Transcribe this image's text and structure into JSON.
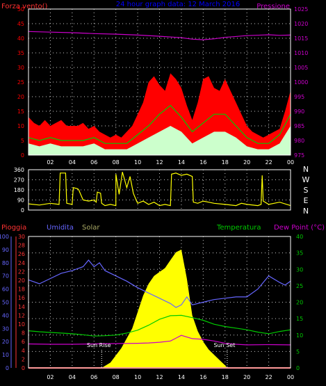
{
  "title": "24 hour graph data: 12 March 2016",
  "colors": {
    "background": "#000000",
    "axis": "#ffffff",
    "grid": "#cccccc",
    "wind_gust": "#ff0000",
    "wind_avg": "#00cc00",
    "wind_base": "#ccffcc",
    "pressure": "#cc00cc",
    "direction": "#ffff00",
    "rain": "#ff3333",
    "humidity": "#6666ff",
    "solar": "#ffff00",
    "temperature": "#00cc00",
    "dewpoint": "#cc00cc",
    "label_rain": "#ff3333",
    "label_humidity": "#6666ff",
    "label_solar": "#aaaa66",
    "label_temperature": "#00cc00",
    "label_dewpoint": "#cc00cc",
    "label_wind": "#ff3333",
    "label_pressure": "#cc00cc",
    "label_title": "#0000ff",
    "label_sun": "#ffffff"
  },
  "chart_data": [
    {
      "type": "line",
      "id": "wind-pressure",
      "title": "24 hour graph data: 12 March 2016",
      "x_tick_labels": [
        "02",
        "04",
        "06",
        "08",
        "10",
        "12",
        "14",
        "16",
        "18",
        "20",
        "22",
        "00"
      ],
      "xlim_hours": [
        0,
        24
      ],
      "left_axis": {
        "label": "Forza vento()",
        "ylim": [
          0,
          50
        ],
        "ticks": [
          0,
          5,
          10,
          15,
          20,
          25,
          30,
          35,
          40,
          45,
          50
        ]
      },
      "right_axis": {
        "label": "Pressione",
        "ylim": [
          975,
          1025
        ],
        "ticks": [
          975,
          980,
          985,
          990,
          995,
          1000,
          1005,
          1010,
          1015,
          1020,
          1025
        ]
      },
      "grid": true,
      "series": [
        {
          "name": "Gust",
          "axis": "left",
          "style": "filled-area",
          "x": [
            0,
            0.5,
            1,
            1.5,
            2,
            2.5,
            3,
            3.5,
            4,
            4.5,
            5,
            5.5,
            6,
            6.5,
            7,
            7.5,
            8,
            8.5,
            9,
            9.5,
            10,
            10.5,
            11,
            11.5,
            12,
            12.5,
            13,
            13.5,
            14,
            14.5,
            15,
            15.5,
            16,
            16.5,
            17,
            17.5,
            18,
            18.5,
            19,
            19.5,
            20,
            20.5,
            21,
            21.5,
            22,
            22.5,
            23,
            23.5,
            24
          ],
          "values": [
            13,
            11,
            10,
            12,
            10,
            11,
            12,
            10,
            10,
            10,
            11,
            9,
            10,
            8,
            7,
            6,
            7,
            6,
            8,
            10,
            14,
            18,
            25,
            27,
            24,
            22,
            28,
            26,
            23,
            17,
            12,
            18,
            26,
            27,
            23,
            22,
            26,
            22,
            18,
            14,
            10,
            8,
            7,
            6,
            7,
            8,
            9,
            15,
            22
          ]
        },
        {
          "name": "Average",
          "axis": "left",
          "style": "line",
          "x": [
            0,
            1,
            2,
            3,
            4,
            5,
            6,
            7,
            8,
            9,
            10,
            11,
            12,
            13,
            14,
            15,
            16,
            17,
            18,
            19,
            20,
            21,
            22,
            23,
            24
          ],
          "values": [
            6,
            5,
            6,
            5,
            5,
            5,
            6,
            4,
            4,
            4,
            7,
            10,
            14,
            17,
            13,
            8,
            11,
            14,
            14,
            10,
            6,
            4,
            4,
            7,
            14
          ]
        },
        {
          "name": "Base",
          "axis": "left",
          "style": "filled-area",
          "x": [
            0,
            1,
            2,
            3,
            4,
            5,
            6,
            7,
            8,
            9,
            10,
            11,
            12,
            13,
            14,
            15,
            16,
            17,
            18,
            19,
            20,
            21,
            22,
            23,
            24
          ],
          "values": [
            4,
            3,
            4,
            3,
            3,
            3,
            4,
            2,
            2,
            2,
            4,
            6,
            8,
            10,
            8,
            4,
            6,
            8,
            8,
            6,
            3,
            2,
            2,
            4,
            10
          ]
        },
        {
          "name": "Pressure",
          "axis": "right",
          "style": "line",
          "x": [
            0,
            2,
            4,
            6,
            8,
            10,
            12,
            14,
            15,
            16,
            17,
            18,
            20,
            22,
            23,
            24
          ],
          "values": [
            1017.3,
            1017.1,
            1016.9,
            1016.6,
            1016.4,
            1016.1,
            1015.7,
            1015.2,
            1014.7,
            1014.5,
            1014.8,
            1015.3,
            1015.9,
            1016.2,
            1016.0,
            1016.1
          ]
        }
      ]
    },
    {
      "type": "line",
      "id": "wind-direction",
      "x_tick_labels": [
        "02",
        "04",
        "06",
        "08",
        "10",
        "12",
        "14",
        "16",
        "18",
        "20",
        "22",
        "00"
      ],
      "xlim_hours": [
        0,
        24
      ],
      "left_axis": {
        "ylim": [
          0,
          360
        ],
        "ticks": [
          0,
          90,
          180,
          270,
          360
        ]
      },
      "right_axis_labels": [
        "N",
        "W",
        "S",
        "E",
        "N"
      ],
      "grid": true,
      "series": [
        {
          "name": "Direction",
          "style": "line",
          "x": [
            0,
            1,
            2,
            2.8,
            2.9,
            3.4,
            3.5,
            4,
            4.1,
            4.5,
            4.6,
            5,
            5.5,
            6,
            6.2,
            6.3,
            6.6,
            6.7,
            7,
            7.5,
            8,
            8,
            8.3,
            8.6,
            9,
            9.3,
            9.6,
            9.9,
            10,
            10.5,
            11,
            11.5,
            12,
            12.5,
            13,
            13.1,
            13.5,
            14,
            14.5,
            15,
            15.1,
            15.5,
            16,
            16.5,
            17,
            18,
            19,
            19.5,
            20,
            21,
            21.3,
            21.4,
            21.5,
            22,
            23,
            24
          ],
          "values": [
            55,
            45,
            60,
            50,
            330,
            330,
            60,
            50,
            200,
            190,
            180,
            90,
            80,
            90,
            70,
            160,
            150,
            60,
            40,
            50,
            40,
            320,
            140,
            340,
            200,
            300,
            150,
            80,
            60,
            80,
            50,
            70,
            40,
            50,
            40,
            320,
            330,
            310,
            320,
            300,
            70,
            60,
            80,
            70,
            60,
            50,
            40,
            60,
            50,
            40,
            50,
            310,
            80,
            50,
            70,
            40
          ]
        }
      ]
    },
    {
      "type": "line",
      "id": "rain-humidity-solar-temp",
      "x_tick_labels": [
        "02",
        "04",
        "06",
        "08",
        "10",
        "12",
        "14",
        "16",
        "18",
        "20",
        "22",
        "00"
      ],
      "xlim_hours": [
        0,
        24
      ],
      "axes": [
        {
          "label": "Pioggia",
          "ylim": [
            0,
            30
          ],
          "ticks": [
            0,
            2,
            4,
            6,
            8,
            10,
            12,
            14,
            16,
            18,
            20,
            22,
            24,
            26,
            28,
            30
          ]
        },
        {
          "label": "Umidita",
          "ylim": [
            0,
            100
          ],
          "ticks": [
            0,
            10,
            20,
            30,
            40,
            50,
            60,
            70,
            80,
            90,
            100
          ]
        },
        {
          "label": "Solar"
        },
        {
          "label": "Temperatura"
        },
        {
          "label": "Dew Point (°C)",
          "ylim": [
            0,
            40
          ],
          "ticks": [
            0,
            5,
            10,
            15,
            20,
            25,
            30,
            35,
            40
          ]
        }
      ],
      "annotations": [
        {
          "text": "Sun Rise",
          "x_hour": 6.7
        },
        {
          "text": "Sun Set",
          "x_hour": 18.2
        }
      ],
      "grid": true,
      "series": [
        {
          "name": "Rain",
          "axis": "Pioggia",
          "style": "line",
          "x": [
            0,
            24
          ],
          "values": [
            0,
            0
          ]
        },
        {
          "name": "Humidity",
          "axis": "Umidita",
          "style": "line",
          "x": [
            0,
            1,
            2,
            3,
            4,
            5,
            5.5,
            6,
            6.5,
            7,
            8,
            9,
            10,
            11,
            12,
            13,
            13.5,
            14,
            14.5,
            15,
            16,
            17,
            18,
            19,
            20,
            21,
            22,
            23,
            23.5,
            24
          ],
          "values": [
            67,
            64,
            68,
            72,
            74,
            77,
            82,
            77,
            80,
            74,
            70,
            66,
            61,
            57,
            53,
            49,
            46,
            48,
            54,
            48,
            50,
            52,
            53,
            54,
            54,
            60,
            70,
            65,
            63,
            66
          ]
        },
        {
          "name": "Solar",
          "axis": "solar",
          "style": "filled-area",
          "x": [
            6.7,
            7.5,
            8.5,
            9.5,
            10.5,
            11,
            11.5,
            12,
            12.5,
            13,
            13.5,
            14,
            14.5,
            15,
            15.5,
            16,
            16.5,
            17,
            17.5,
            18,
            18.2
          ],
          "values": [
            0,
            4,
            15,
            30,
            55,
            64,
            70,
            73,
            76,
            82,
            88,
            90,
            68,
            40,
            28,
            20,
            14,
            10,
            6,
            2,
            0
          ]
        },
        {
          "name": "Temperature",
          "axis": "Dew Point (°C)",
          "style": "line",
          "x": [
            0,
            1,
            2,
            3,
            4,
            5,
            6,
            7,
            8,
            9,
            10,
            11,
            12,
            13,
            14,
            15,
            16,
            17,
            18,
            19,
            20,
            21,
            22,
            23,
            24
          ],
          "values": [
            11.3,
            11.0,
            10.8,
            10.6,
            10.4,
            10.1,
            9.7,
            9.8,
            10.0,
            10.6,
            11.5,
            13.0,
            14.8,
            15.9,
            16.0,
            15.3,
            14.5,
            13.3,
            12.6,
            12.1,
            11.6,
            10.9,
            10.4,
            11.1,
            11.6
          ]
        },
        {
          "name": "Dew Point",
          "axis": "Dew Point (°C)",
          "style": "line",
          "x": [
            0,
            2,
            4,
            6,
            8,
            10,
            11,
            12,
            13,
            14,
            15,
            16,
            17,
            18,
            19,
            20,
            22,
            24
          ],
          "values": [
            7.3,
            7.2,
            7.2,
            7.3,
            7.4,
            7.5,
            7.6,
            7.8,
            8.2,
            9.9,
            8.9,
            8.7,
            8.2,
            7.5,
            7.2,
            7.0,
            7.1,
            7.0
          ]
        }
      ]
    }
  ]
}
